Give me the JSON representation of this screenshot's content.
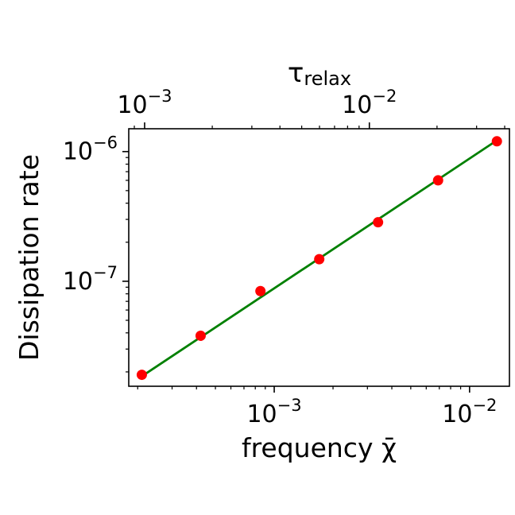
{
  "chart_data": {
    "type": "scatter",
    "xlabel": "frequency χ̄",
    "ylabel": "Dissipation rate",
    "top_xlabel": "τ",
    "top_xlabel_subscript": "relax",
    "x_scale": "log",
    "y_scale": "log",
    "top_x_scale": "log",
    "xlim": [
      0.00018,
      0.016
    ],
    "ylim": [
      1.55e-08,
      1.5e-06
    ],
    "top_xlim": [
      0.00085,
      0.042
    ],
    "x_ticks": [
      {
        "value": 0.001,
        "base": "10",
        "exp": "−3"
      },
      {
        "value": 0.01,
        "base": "10",
        "exp": "−2"
      }
    ],
    "y_ticks": [
      {
        "value": 1e-07,
        "base": "10",
        "exp": "−7"
      },
      {
        "value": 1e-06,
        "base": "10",
        "exp": "−6"
      }
    ],
    "top_x_ticks": [
      {
        "value": 0.001,
        "base": "10",
        "exp": "−3"
      },
      {
        "value": 0.01,
        "base": "10",
        "exp": "−2"
      }
    ],
    "grid": false,
    "series": [
      {
        "marker_color": "#ff0000",
        "x": [
          0.00021,
          0.00042,
          0.00085,
          0.0017,
          0.0034,
          0.0069,
          0.0138
        ],
        "y": [
          1.9e-08,
          3.8e-08,
          8.4e-08,
          1.48e-07,
          2.85e-07,
          6e-07,
          1.2e-06
        ]
      }
    ],
    "fit_line": {
      "color": "#008000",
      "x": [
        0.00021,
        0.0138
      ],
      "y": [
        1.85e-08,
        1.22e-06
      ]
    }
  }
}
